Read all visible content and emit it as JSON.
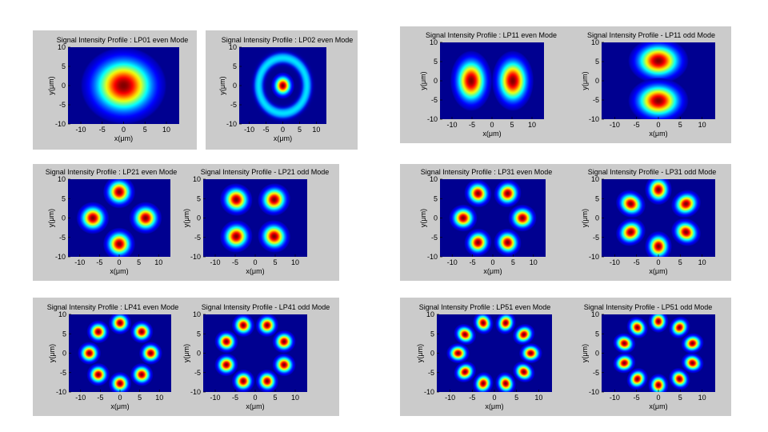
{
  "axes_common": {
    "xlabel": "x(μm)",
    "ylabel": "y(μm)",
    "xticks": [
      "-10",
      "-5",
      "0",
      "5",
      "10"
    ],
    "yticks": [
      "10",
      "5",
      "0",
      "-5",
      "-10"
    ],
    "xlim": [
      -13,
      13
    ],
    "ylim": [
      -10,
      10
    ],
    "colormap": "jet",
    "background_color": "#000090"
  },
  "chart_data": [
    {
      "type": "heatmap",
      "title": "Signal Intensity Profile : LP01 even Mode",
      "mode": "LP01",
      "parity": "even",
      "pattern": "gaussian-lobes",
      "lobes": 1,
      "lobe_radius_um": 0,
      "lobe_width_um": 4.6
    },
    {
      "type": "heatmap",
      "title": "Signal Intensity Profile : LP02 even Mode",
      "mode": "LP02",
      "parity": "even",
      "pattern": "center-plus-ring",
      "lobes": 1,
      "lobe_radius_um": 0,
      "lobe_width_um": 1.6,
      "ring_radius_um": 7.2,
      "ring_width_um": 1.8,
      "ring_level": 0.35
    },
    {
      "type": "heatmap",
      "title": "Signal Intensity Profile : LP11 even Mode",
      "mode": "LP11",
      "parity": "even",
      "pattern": "gaussian-lobes",
      "lobes": 2,
      "lobe_radius_um": 5.2,
      "lobe_width_um": 2.4,
      "lobe_width_along_um": 3.6,
      "start_angle_deg": 0
    },
    {
      "type": "heatmap",
      "title": "Signal Intensity Profile - LP11 odd Mode",
      "mode": "LP11",
      "parity": "odd",
      "pattern": "gaussian-lobes",
      "lobes": 2,
      "lobe_radius_um": 5.2,
      "lobe_width_um": 2.4,
      "lobe_width_along_um": 3.6,
      "start_angle_deg": 90
    },
    {
      "type": "heatmap",
      "title": "Signal Intensity Profile : LP21 even Mode",
      "mode": "LP21",
      "parity": "even",
      "pattern": "gaussian-lobes",
      "lobes": 4,
      "lobe_radius_um": 6.7,
      "lobe_width_um": 1.9,
      "start_angle_deg": 0
    },
    {
      "type": "heatmap",
      "title": "Signal Intensity Profile - LP21 odd Mode",
      "mode": "LP21",
      "parity": "odd",
      "pattern": "gaussian-lobes",
      "lobes": 4,
      "lobe_radius_um": 6.7,
      "lobe_width_um": 1.9,
      "start_angle_deg": 45
    },
    {
      "type": "heatmap",
      "title": "Signal Intensity Profile : LP31 even Mode",
      "mode": "LP31",
      "parity": "even",
      "pattern": "gaussian-lobes",
      "lobes": 6,
      "lobe_radius_um": 7.3,
      "lobe_width_um": 1.6,
      "start_angle_deg": 0
    },
    {
      "type": "heatmap",
      "title": "Signal Intensity Profile - LP31 odd Mode",
      "mode": "LP31",
      "parity": "odd",
      "pattern": "gaussian-lobes",
      "lobes": 6,
      "lobe_radius_um": 7.3,
      "lobe_width_um": 1.6,
      "start_angle_deg": 30
    },
    {
      "type": "heatmap",
      "title": "Signal Intensity Profile : LP41 even Mode",
      "mode": "LP41",
      "parity": "even",
      "pattern": "gaussian-lobes",
      "lobes": 8,
      "lobe_radius_um": 7.8,
      "lobe_width_um": 1.35,
      "start_angle_deg": 0
    },
    {
      "type": "heatmap",
      "title": "Signal Intensity Profile - LP41 odd Mode",
      "mode": "LP41",
      "parity": "odd",
      "pattern": "gaussian-lobes",
      "lobes": 8,
      "lobe_radius_um": 7.8,
      "lobe_width_um": 1.35,
      "start_angle_deg": 22.5
    },
    {
      "type": "heatmap",
      "title": "Signal Intensity Profile : LP51 even Mode",
      "mode": "LP51",
      "parity": "even",
      "pattern": "gaussian-lobes",
      "lobes": 10,
      "lobe_radius_um": 8.2,
      "lobe_width_um": 1.2,
      "start_angle_deg": 0
    },
    {
      "type": "heatmap",
      "title": "Signal Intensity Profile - LP51 odd Mode",
      "mode": "LP51",
      "parity": "odd",
      "pattern": "gaussian-lobes",
      "lobes": 10,
      "lobe_radius_um": 8.2,
      "lobe_width_um": 1.2,
      "start_angle_deg": 18
    }
  ]
}
